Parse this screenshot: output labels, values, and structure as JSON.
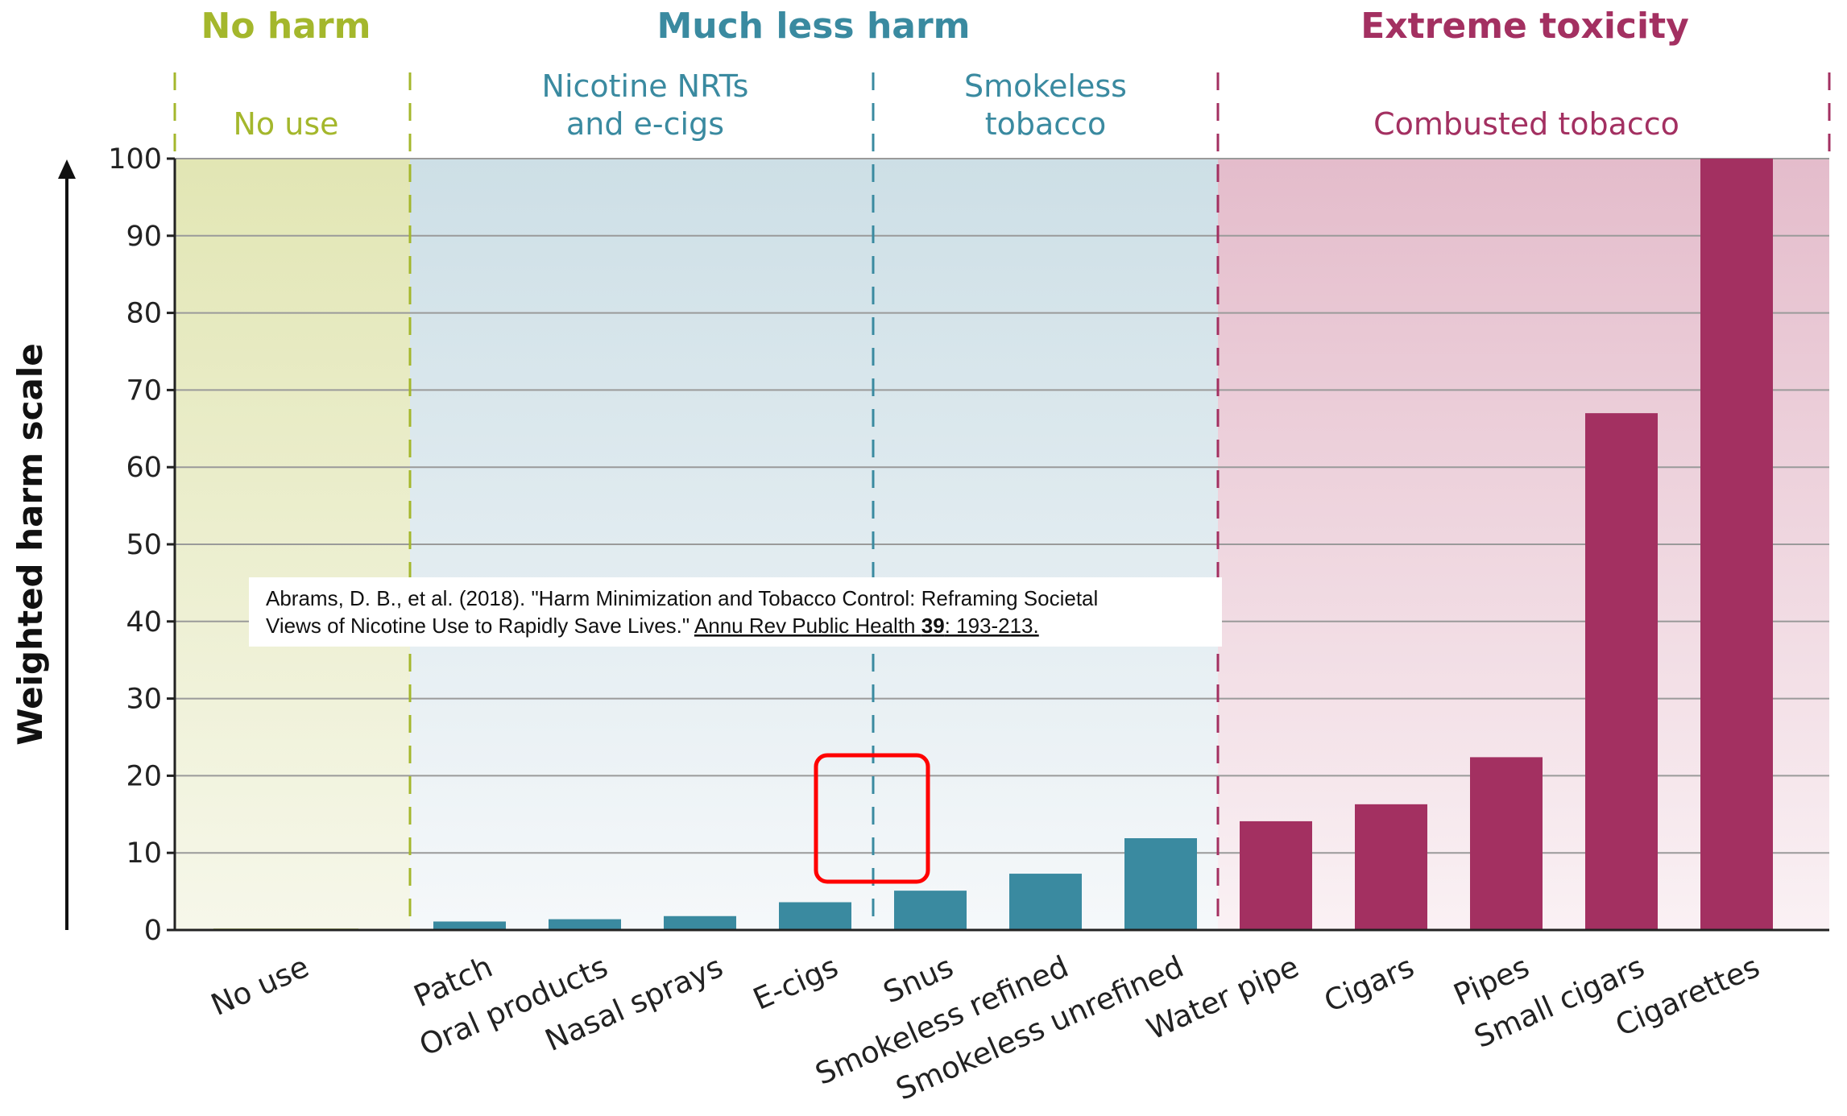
{
  "chart_data": {
    "type": "bar",
    "ylabel": "Weighted harm scale",
    "ylim": [
      0,
      100
    ],
    "yticks": [
      0,
      10,
      20,
      30,
      40,
      50,
      60,
      70,
      80,
      90,
      100
    ],
    "grid": true,
    "categories": [
      "No use",
      "Patch",
      "Oral products",
      "Nasal sprays",
      "E-cigs",
      "Snus",
      "Smokeless refined",
      "Smokeless unrefined",
      "Water pipe",
      "Cigars",
      "Pipes",
      "Small cigars",
      "Cigarettes"
    ],
    "values": [
      0.2,
      1.1,
      1.4,
      1.8,
      3.6,
      5.1,
      7.3,
      11.9,
      14.1,
      16.3,
      22.4,
      67.0,
      100
    ],
    "groups": [
      {
        "title": "No harm",
        "sublabel_lines": [
          "No use"
        ],
        "color": "#a4b72c",
        "bar_color": "#c5cf7a"
      },
      {
        "title": "Much less harm",
        "sublabel_lines": [
          "Nicotine NRTs",
          "and e-cigs"
        ],
        "color": "#3a8aa0",
        "bar_color": "#3a8aa0"
      },
      {
        "title": "",
        "sublabel_lines": [
          "Smokeless",
          "tobacco"
        ],
        "color": "#3a8aa0",
        "bar_color": "#3a8aa0"
      },
      {
        "title": "Extreme toxicity",
        "sublabel_lines": [
          "Combusted tobacco"
        ],
        "color": "#a33061",
        "bar_color": "#a33061"
      }
    ]
  },
  "citation": {
    "line1": "Abrams, D. B., et al. (2018). \"Harm Minimization and Tobacco Control: Reframing Societal",
    "line2_plain": "Views of Nicotine Use to Rapidly Save Lives.\" ",
    "line2_journal": "Annu Rev Public Health ",
    "line2_volume": "39",
    "line2_pages": ": 193-213."
  },
  "highlight_color": "#ff0000"
}
